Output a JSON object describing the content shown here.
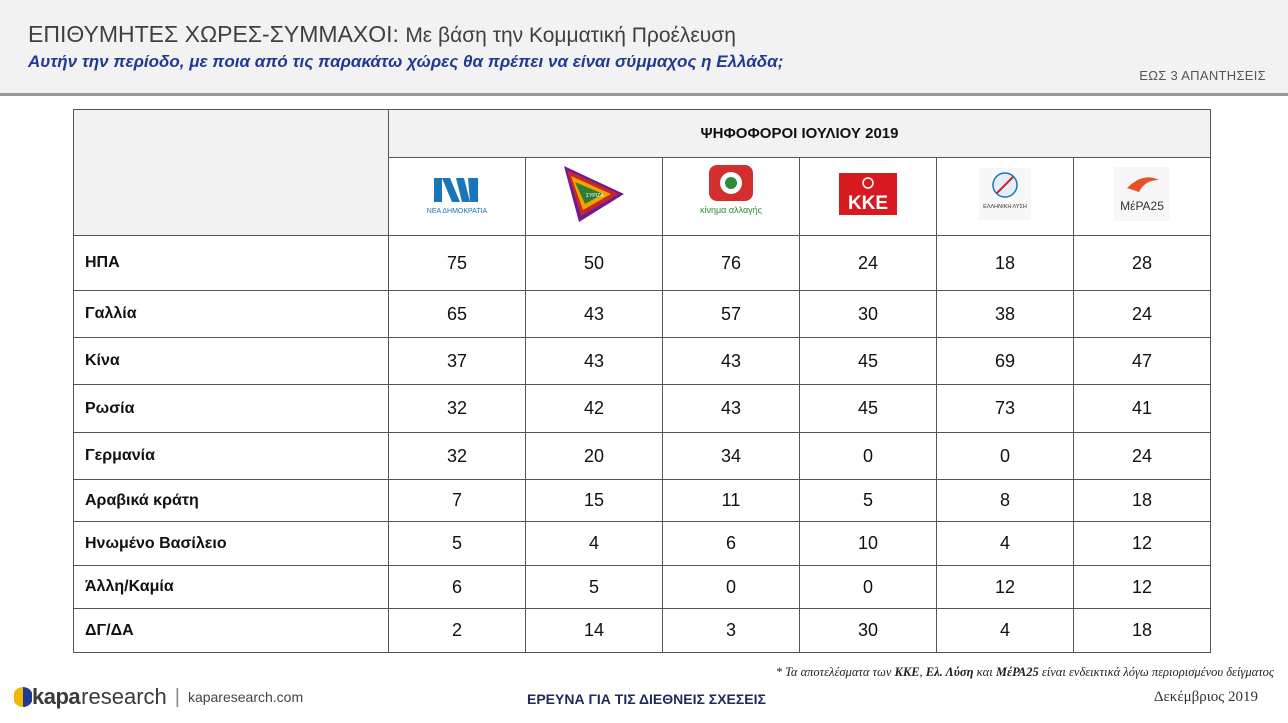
{
  "header": {
    "title_bold": "ΕΠΙΘΥΜΗΤΕΣ ΧΩΡΕΣ-ΣΥΜΜΑΧΟΙ:",
    "title_rest": "Με βάση την Κομματική Προέλευση",
    "subtitle": "Αυτήν την περίοδο, με ποια από τις παρακάτω χώρες θα πρέπει να είναι σύμμαχος η Ελλάδα;",
    "upto": "ΕΩΣ 3 ΑΠΑΝΤΗΣΕΙΣ"
  },
  "table": {
    "group_header": "ΨΗΦΟΦΟΡΟΙ ΙΟΥΛΙΟΥ 2019",
    "parties": [
      {
        "logo_text": "ΝΕΑ ΔΗΜΟΚΡΑΤΙΑ",
        "icon": "nd-logo-icon"
      },
      {
        "logo_text": "ΣΥΡΙΖΑ",
        "icon": "syriza-logo-icon"
      },
      {
        "logo_text": "κίνημα αλλαγής",
        "icon": "kinal-logo-icon"
      },
      {
        "logo_text": "ΚΚΕ",
        "icon": "kke-logo-icon"
      },
      {
        "logo_text": "ΕΛΛΗΝΙΚΗ ΛΥΣΗ",
        "icon": "ellinikilysi-logo-icon"
      },
      {
        "logo_text": "ΜέΡΑ25",
        "icon": "mera25-logo-icon"
      }
    ],
    "rows": [
      {
        "label": "ΗΠΑ",
        "values": [
          "75",
          "50",
          "76",
          "24",
          "18",
          "28"
        ]
      },
      {
        "label": "Γαλλία",
        "values": [
          "65",
          "43",
          "57",
          "30",
          "38",
          "24"
        ]
      },
      {
        "label": "Κίνα",
        "values": [
          "37",
          "43",
          "43",
          "45",
          "69",
          "47"
        ]
      },
      {
        "label": "Ρωσία",
        "values": [
          "32",
          "42",
          "43",
          "45",
          "73",
          "41"
        ]
      },
      {
        "label": "Γερμανία",
        "values": [
          "32",
          "20",
          "34",
          "0",
          "0",
          "24"
        ]
      },
      {
        "label": "Αραβικά κράτη",
        "values": [
          "7",
          "15",
          "11",
          "5",
          "8",
          "18"
        ]
      },
      {
        "label": "Ηνωμένο Βασίλειο",
        "values": [
          "5",
          "4",
          "6",
          "10",
          "4",
          "12"
        ]
      },
      {
        "label": "Άλλη/Καμία",
        "values": [
          "6",
          "5",
          "0",
          "0",
          "12",
          "12"
        ]
      },
      {
        "label": "ΔΓ/ΔΑ",
        "values": [
          "2",
          "14",
          "3",
          "30",
          "4",
          "18"
        ]
      }
    ]
  },
  "footnote": {
    "prefix": "* Τα αποτελέσματα των",
    "kke": "ΚΚΕ",
    "comma": ",",
    "el": "Ελ. Λύση",
    "and": "και",
    "mera": "ΜέΡΑ25",
    "suffix": "είναι ενδεικτικά λόγω περιορισμένου δείγματος"
  },
  "footer": {
    "brand_kapa": "kapa",
    "brand_research": "research",
    "separator": "|",
    "url": "kaparesearch.com",
    "center_title": "ΕΡΕΥΝΑ ΓΙΑ ΤΙΣ ΔΙΕΘΝΕΙΣ ΣΧΕΣΕΙΣ",
    "date": "Δεκέμβριος 2019"
  },
  "colors": {
    "subtitle_blue": "#1f3a93",
    "nd_blue": "#1b75bb",
    "syriza_red": "#c62828",
    "kinal_green": "#2e8b3a",
    "kke_red": "#d71920",
    "mera_orange": "#e8502a"
  }
}
